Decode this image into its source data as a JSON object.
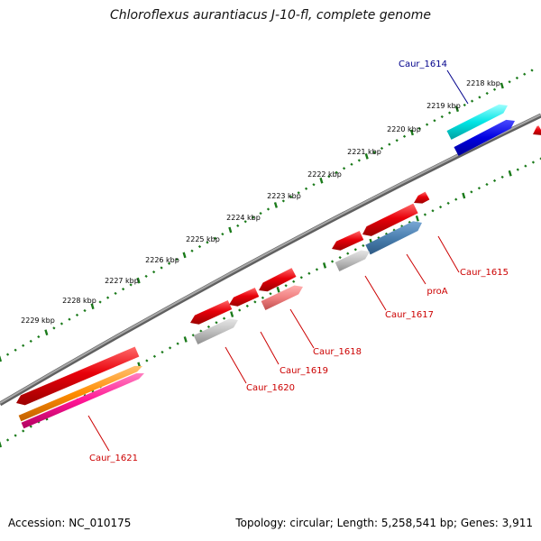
{
  "title": "Chloroflexus aurantiacus J-10-fl, complete genome",
  "footer": {
    "accession": "Accession: NC_010175",
    "stats": "Topology: circular; Length: 5,258,541 bp; Genes: 3,911"
  },
  "ruler_labels": [
    "2218 kbp",
    "2219 kbp",
    "2220 kbp",
    "2221 kbp",
    "2222 kbp",
    "2223 kbp",
    "2224 kbp",
    "2225 kbp",
    "2226 kbp",
    "2227 kbp",
    "2228 kbp",
    "2229 kbp"
  ],
  "gene_labels": [
    {
      "text": "Caur_1614",
      "color": "#00008b"
    },
    {
      "text": "Caur_1615",
      "color": "#cc0000"
    },
    {
      "text": "proA",
      "color": "#cc0000"
    },
    {
      "text": "Caur_1617",
      "color": "#cc0000"
    },
    {
      "text": "Caur_1618",
      "color": "#cc0000"
    },
    {
      "text": "Caur_1619",
      "color": "#cc0000"
    },
    {
      "text": "Caur_1620",
      "color": "#cc0000"
    },
    {
      "text": "Caur_1621",
      "color": "#cc0000"
    }
  ],
  "colors": {
    "backbone": "#808080",
    "ticks": "#1a7a1a",
    "cds_red": "#e8000a",
    "cds_pink": "#f08080",
    "cds_grey": "#bfbfbf",
    "cds_steelblue": "#4a7fb0",
    "cds_cyan": "#00e5e5",
    "cds_blue": "#0000e0",
    "cds_orange": "#ff8c00",
    "cds_magenta": "#ff1493"
  }
}
